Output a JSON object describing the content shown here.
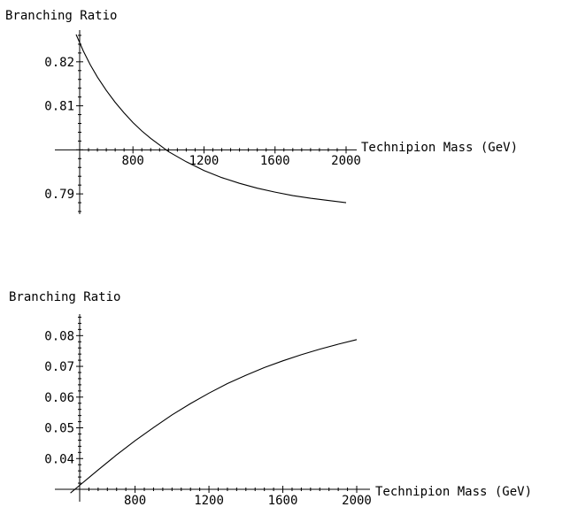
{
  "chart_data": [
    {
      "type": "line",
      "title": "",
      "ylabel": "Branching Ratio",
      "xlabel": "Technipion Mass (GeV)",
      "xlim": [
        500,
        2000
      ],
      "ylim": [
        0.785,
        0.827
      ],
      "x_ticks": [
        800,
        1200,
        1600,
        2000
      ],
      "y_ticks": [
        0.79,
        0.81,
        0.82
      ],
      "y_tick_labels": [
        "0.79",
        "0.81",
        "0.82"
      ],
      "x_cross": 0.8,
      "grid": false,
      "series": [
        {
          "x": [
            480,
            520,
            560,
            600,
            650,
            700,
            750,
            800,
            850,
            900,
            1000,
            1100,
            1200,
            1300,
            1400,
            1500,
            1600,
            1700,
            1800,
            1900,
            2000
          ],
          "y": [
            0.8262,
            0.8225,
            0.8193,
            0.8165,
            0.8135,
            0.8108,
            0.8084,
            0.8062,
            0.8043,
            0.8026,
            0.7996,
            0.7973,
            0.7953,
            0.7937,
            0.7924,
            0.7913,
            0.7904,
            0.7896,
            0.789,
            0.7885,
            0.788
          ]
        }
      ]
    },
    {
      "type": "line",
      "title": "",
      "ylabel": "Branching Ratio",
      "xlabel": "Technipion Mass (GeV)",
      "xlim": [
        500,
        2000
      ],
      "ylim": [
        0.03,
        0.087
      ],
      "x_ticks": [
        800,
        1200,
        1600,
        2000
      ],
      "y_ticks": [
        0.04,
        0.05,
        0.06,
        0.07,
        0.08
      ],
      "y_tick_labels": [
        "0.04",
        "0.05",
        "0.06",
        "0.07",
        "0.08"
      ],
      "x_cross": 0.03,
      "grid": false,
      "series": [
        {
          "x": [
            450,
            500,
            550,
            600,
            700,
            800,
            900,
            1000,
            1100,
            1200,
            1300,
            1400,
            1500,
            1600,
            1700,
            1800,
            1900,
            2000
          ],
          "y": [
            0.0288,
            0.0313,
            0.0338,
            0.0363,
            0.0412,
            0.0458,
            0.0501,
            0.0542,
            0.0579,
            0.0613,
            0.0644,
            0.0671,
            0.0696,
            0.0718,
            0.0738,
            0.0756,
            0.0772,
            0.0787
          ]
        }
      ]
    }
  ]
}
